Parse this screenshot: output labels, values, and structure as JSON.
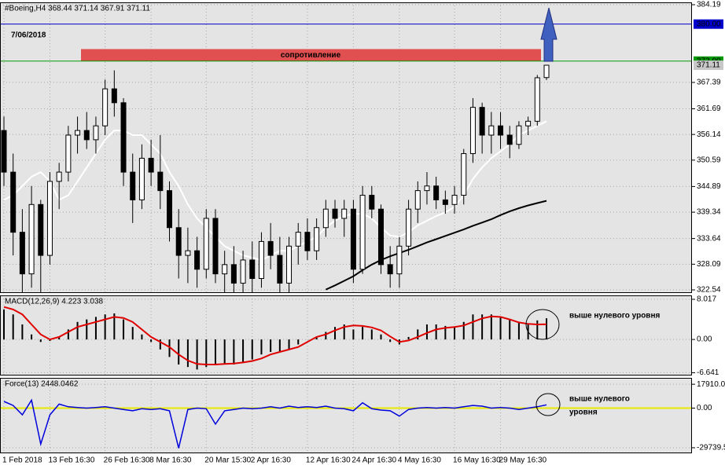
{
  "chart_data": [
    {
      "type": "candlestick",
      "title": "#Boeing,H4 368.44 371.14 367.91 371.11",
      "annotation": "7/06/2018",
      "categories": [
        "1 Feb 2018",
        null,
        null,
        null,
        null,
        "13 Feb 16:30",
        null,
        null,
        null,
        null,
        null,
        "26 Feb 16:30",
        null,
        null,
        null,
        null,
        "8 Mar 16:30",
        null,
        null,
        null,
        null,
        null,
        "20 Mar 15:30",
        null,
        null,
        null,
        null,
        "2 Apr 16:30",
        null,
        null,
        null,
        null,
        null,
        "12 Apr 16:30",
        null,
        null,
        null,
        null,
        "24 Apr 16:30",
        null,
        null,
        null,
        null,
        "4 May 16:30",
        null,
        null,
        null,
        null,
        null,
        "16 May 16:30",
        null,
        null,
        null,
        null,
        "29 May 16:30",
        null,
        null,
        null,
        null,
        null
      ],
      "open": [
        357,
        348,
        335,
        326,
        341,
        330,
        346,
        348,
        356,
        357,
        355,
        358,
        366,
        363,
        348,
        342,
        351,
        348,
        344,
        336,
        330,
        331,
        327,
        338,
        326,
        328,
        324,
        329,
        325,
        333,
        330,
        324,
        332,
        335,
        331,
        336,
        340,
        338,
        340,
        327,
        343,
        340,
        328,
        326,
        332,
        340,
        344,
        345,
        342,
        341,
        343,
        352,
        362,
        356,
        358,
        356,
        354,
        358,
        359,
        368.44
      ],
      "high": [
        360,
        352,
        340,
        345,
        342,
        348,
        350,
        358,
        360,
        361,
        360,
        368,
        370,
        364,
        352,
        354,
        355,
        356,
        346,
        340,
        336,
        334,
        340,
        340,
        331,
        332,
        331,
        333,
        335,
        337,
        334,
        334,
        337,
        338,
        338,
        342,
        342,
        342,
        342,
        345,
        345,
        341,
        332,
        334,
        342,
        346,
        348,
        347,
        344,
        345,
        353,
        364,
        363,
        361,
        361,
        358,
        359,
        360,
        369,
        371.14
      ],
      "low": [
        345,
        330,
        322,
        323,
        322,
        328,
        340,
        346,
        352,
        353,
        352,
        356,
        360,
        345,
        337,
        340,
        345,
        340,
        333,
        325,
        324,
        323,
        325,
        324,
        322,
        322,
        322,
        322,
        323,
        327,
        322,
        322,
        328,
        329,
        329,
        334,
        336,
        334,
        324,
        326,
        338,
        326,
        323,
        323,
        330,
        337,
        341,
        340,
        339,
        339,
        341,
        350,
        352,
        352,
        353,
        351,
        353,
        356,
        358,
        367.91
      ],
      "close": [
        348,
        335,
        326,
        341,
        330,
        346,
        348,
        356,
        357,
        355,
        358,
        366,
        363,
        348,
        342,
        351,
        348,
        344,
        336,
        330,
        331,
        327,
        338,
        326,
        328,
        324,
        329,
        325,
        333,
        330,
        324,
        332,
        335,
        331,
        336,
        340,
        338,
        340,
        327,
        343,
        340,
        328,
        326,
        332,
        340,
        344,
        345,
        342,
        341,
        343,
        352,
        362,
        356,
        358,
        356,
        354,
        358,
        359,
        368.4,
        371.11
      ],
      "lines": [
        {
          "color": "#ffffff",
          "values": [
            342,
            343,
            345,
            347,
            348,
            346,
            342,
            343,
            346,
            349,
            352,
            355,
            357,
            357,
            356,
            356,
            354,
            352,
            348,
            345,
            341,
            338,
            336,
            334,
            332,
            331,
            330,
            329.5,
            329,
            330,
            331,
            331,
            332,
            333,
            334,
            336,
            337.5,
            338.5,
            339,
            339,
            338,
            336,
            334.3,
            334,
            335,
            336.5,
            337.5,
            338.5,
            339.3,
            340.5,
            343,
            346.5,
            349,
            351,
            352.5,
            354,
            356,
            357,
            358,
            359
          ]
        },
        {
          "color": "#000000",
          "values": [
            null,
            null,
            null,
            null,
            null,
            null,
            null,
            null,
            null,
            null,
            null,
            null,
            null,
            null,
            null,
            null,
            null,
            null,
            null,
            null,
            null,
            null,
            null,
            null,
            null,
            null,
            null,
            null,
            null,
            null,
            null,
            null,
            null,
            null,
            null,
            322.6,
            323.5,
            324.5,
            325.5,
            326.8,
            328,
            329,
            329.8,
            330.5,
            331.2,
            332,
            332.8,
            333.5,
            334.2,
            334.9,
            335.6,
            336.4,
            337.1,
            337.8,
            338.7,
            339.5,
            340.2,
            340.8,
            341.3,
            341.8
          ]
        }
      ],
      "hlines": [
        {
          "value": 380,
          "label": "380.00",
          "color": "#0000cc"
        },
        {
          "value": 372,
          "label": "372.00",
          "color": "#009900"
        }
      ],
      "zone": {
        "label": "сопротивление",
        "ylim": [
          372,
          374.6
        ],
        "color": "#e05050"
      },
      "ylim": [
        321.86,
        384.7
      ],
      "yticks": [
        384.19,
        367.39,
        361.69,
        356.14,
        350.59,
        344.89,
        339.34,
        333.64,
        328.09,
        322.54
      ],
      "grid": true
    },
    {
      "type": "macd",
      "title": "MACD(12,26,9) 4.223 3.038",
      "annotation": "выше нулевого уровня",
      "values": [
        6,
        5,
        3,
        1,
        -0.5,
        -0.3,
        0.5,
        2,
        3.5,
        4,
        4.5,
        5,
        5.2,
        4,
        2.5,
        1,
        -0.5,
        -2,
        -3.5,
        -5,
        -5.5,
        -6,
        -5.5,
        -5,
        -5,
        -5,
        -4.5,
        -4,
        -3,
        -2.5,
        -2.5,
        -2,
        -1,
        0,
        0.5,
        1.5,
        2.5,
        3,
        2,
        2.5,
        2,
        1,
        -0.5,
        -1,
        0.5,
        2,
        3,
        3,
        2.7,
        2.5,
        3.5,
        5,
        5,
        5,
        4.5,
        4,
        3.5,
        3,
        3.8,
        4.223
      ],
      "color": "#000000",
      "signal": {
        "color": "#e00000",
        "values": [
          6.5,
          6,
          5,
          3,
          1,
          0,
          0.5,
          1.5,
          2.5,
          3,
          3.5,
          4,
          4.5,
          4.3,
          3.5,
          2,
          0.5,
          -0.5,
          -1.5,
          -3,
          -4.2,
          -4.9,
          -5,
          -5,
          -4.9,
          -4.8,
          -4.6,
          -4.3,
          -3.8,
          -3,
          -2.5,
          -2,
          -1.5,
          -0.5,
          0.5,
          1,
          1.8,
          2.5,
          2.8,
          2.7,
          2.4,
          1.8,
          0.6,
          -0.5,
          -0.2,
          0.5,
          1.3,
          2,
          2.3,
          2.5,
          2.8,
          3.5,
          4.2,
          4.6,
          4.5,
          4,
          3.4,
          3.1,
          3,
          3.038
        ]
      },
      "ylim": [
        -7.2,
        8.8
      ],
      "yticks": [
        8.017,
        {
          "value": 0,
          "label": "0.00"
        },
        -6.641
      ]
    },
    {
      "type": "line",
      "title": "Force(13) 2448.0462",
      "annotation": [
        "выше нулевого",
        "уровня"
      ],
      "values": [
        5000,
        2000,
        -5000,
        6000,
        -27000,
        -5000,
        3000,
        1000,
        500,
        0,
        500,
        1000,
        0,
        -1000,
        -2000,
        -500,
        -1000,
        -500,
        -2000,
        -30000,
        -1000,
        0,
        -500,
        -12000,
        -2000,
        -1000,
        0,
        -500,
        0,
        1000,
        0,
        1500,
        500,
        1000,
        500,
        1500,
        0,
        -500,
        -2000,
        4000,
        -500,
        -1500,
        -2000,
        -6000,
        -1000,
        0,
        500,
        0,
        500,
        0,
        1000,
        2000,
        1500,
        0,
        500,
        0,
        -1000,
        0,
        1000,
        2448.0462
      ],
      "color": "#0000dd",
      "zero_line_color": "#e8e800",
      "ylim": [
        -33900,
        22700
      ],
      "yticks": [
        17910.07,
        {
          "value": 0,
          "label": "0.00"
        },
        -29739.5
      ]
    }
  ]
}
